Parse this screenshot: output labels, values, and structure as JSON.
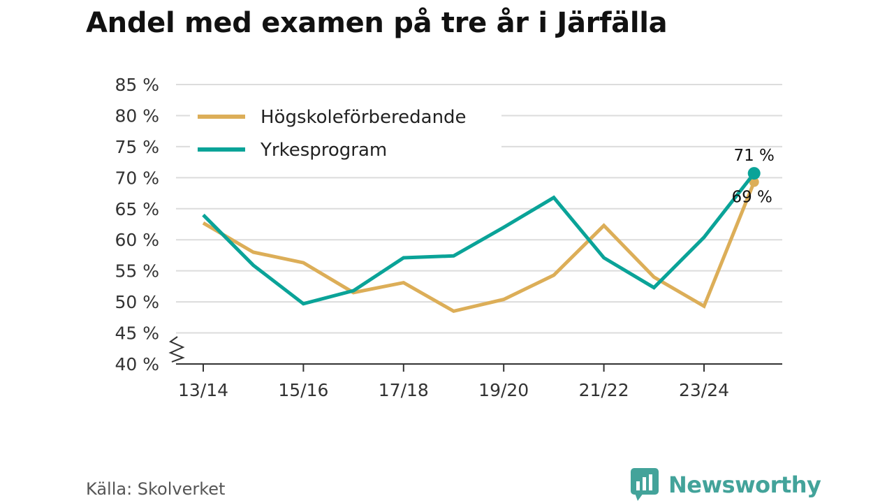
{
  "title": "Andel med examen på tre år i Järfälla",
  "source": "Källa: Skolverket",
  "brand": {
    "name": "Newsworthy",
    "icon": "newsworthy-logo-icon",
    "color": "#43a39a"
  },
  "chart_data": {
    "type": "line",
    "title": "Andel med examen på tre år i Järfälla",
    "xlabel": "",
    "ylabel": "",
    "ylim": [
      40,
      85
    ],
    "y_ticks": [
      40,
      45,
      50,
      55,
      60,
      65,
      70,
      75,
      80,
      85
    ],
    "y_tick_suffix": " %",
    "categories": [
      "13/14",
      "14/15",
      "15/16",
      "16/17",
      "17/18",
      "18/19",
      "19/20",
      "20/21",
      "21/22",
      "22/23",
      "23/24",
      "24/25"
    ],
    "x_tick_labels": [
      "13/14",
      "15/16",
      "17/18",
      "19/20",
      "21/22",
      "23/24"
    ],
    "axis_break": true,
    "grid": true,
    "legend_position": "top-left",
    "series": [
      {
        "name": "Högskoleförberedande",
        "color": "#dcae58",
        "values": [
          62.7,
          58,
          56.3,
          51.5,
          53.1,
          48.5,
          50.4,
          54.3,
          62.3,
          54,
          49.3,
          69.3
        ],
        "end_label": "69 %"
      },
      {
        "name": "Yrkesprogram",
        "color": "#0aa398",
        "values": [
          64,
          55.9,
          49.7,
          51.8,
          57.1,
          57.4,
          62,
          66.8,
          57.1,
          52.3,
          60.4,
          70.7
        ],
        "end_label": "71 %"
      }
    ]
  }
}
